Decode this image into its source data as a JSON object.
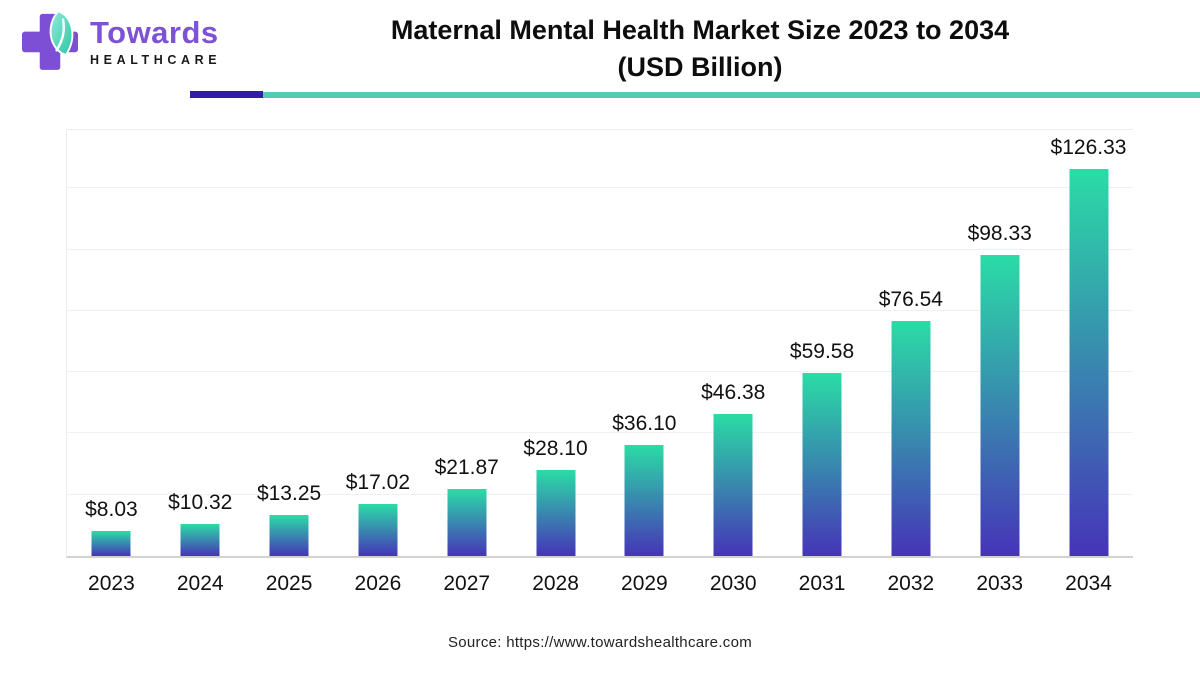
{
  "logo": {
    "brand_name": "Towards",
    "brand_subtitle": "HEALTHCARE",
    "colors": {
      "cross": "#7C4FD4",
      "leaf_light": "#8FEDD8",
      "leaf_dark": "#2EC4A5",
      "brand_text": "#7E52D5",
      "subtitle_text": "#1A1A1A"
    }
  },
  "header": {
    "title_line1": "Maternal Mental Health Market Size 2023 to 2034",
    "title_line2": "(USD Billion)",
    "divider_purple_color": "#341CA8",
    "divider_teal_color": "#52CBB2"
  },
  "chart_data": {
    "type": "bar",
    "title": "Maternal Mental Health Market Size 2023 to 2034 (USD Billion)",
    "categories": [
      "2023",
      "2024",
      "2025",
      "2026",
      "2027",
      "2028",
      "2029",
      "2030",
      "2031",
      "2032",
      "2033",
      "2034"
    ],
    "values": [
      8.03,
      10.32,
      13.25,
      17.02,
      21.87,
      28.1,
      36.1,
      46.38,
      59.58,
      76.54,
      98.33,
      126.33
    ],
    "value_labels": [
      "$8.03",
      "$10.32",
      "$13.25",
      "$17.02",
      "$21.87",
      "$28.10",
      "$36.10",
      "$46.38",
      "$59.58",
      "$76.54",
      "$98.33",
      "$126.33"
    ],
    "xlabel": "",
    "ylabel": "",
    "ylim": [
      0,
      140
    ],
    "gridline_step": 20,
    "grid": "horizontal-only",
    "legend": "none",
    "bar_color_top": "#2BDCA6",
    "bar_color_bottom": "#4634B8",
    "label_color": "#111111"
  },
  "footer": {
    "source_text": "Source: https://www.towardshealthcare.com"
  }
}
